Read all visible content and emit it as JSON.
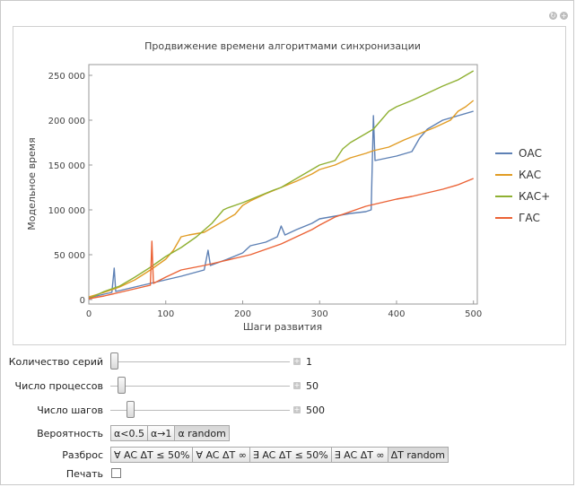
{
  "chart_data": {
    "type": "line",
    "title": "Продвижение времени алгоритмами синхронизации",
    "xlabel": "Шаги развития",
    "ylabel": "Модельное время",
    "xlim": [
      0,
      505
    ],
    "ylim": [
      -5000,
      262000
    ],
    "x_ticks": [
      0,
      100,
      200,
      300,
      400,
      500
    ],
    "x_tick_labels": [
      "0",
      "100",
      "200",
      "300",
      "400",
      "500"
    ],
    "y_ticks": [
      0,
      50000,
      100000,
      150000,
      200000,
      250000
    ],
    "y_tick_labels": [
      "0",
      "50 000",
      "100 000",
      "150 000",
      "200 000",
      "250 000"
    ],
    "legend_position": "right",
    "series": [
      {
        "name": "ОАС",
        "color": "#5e81b5",
        "points": [
          [
            0,
            2000
          ],
          [
            20,
            6000
          ],
          [
            30,
            8000
          ],
          [
            33,
            35000
          ],
          [
            35,
            9000
          ],
          [
            60,
            14000
          ],
          [
            80,
            18000
          ],
          [
            100,
            22000
          ],
          [
            120,
            26000
          ],
          [
            150,
            33000
          ],
          [
            155,
            55000
          ],
          [
            158,
            38000
          ],
          [
            180,
            45000
          ],
          [
            200,
            52000
          ],
          [
            210,
            60000
          ],
          [
            230,
            64000
          ],
          [
            245,
            70000
          ],
          [
            250,
            82000
          ],
          [
            255,
            72000
          ],
          [
            270,
            78000
          ],
          [
            290,
            85000
          ],
          [
            300,
            90000
          ],
          [
            320,
            93000
          ],
          [
            340,
            96000
          ],
          [
            360,
            98000
          ],
          [
            367,
            100000
          ],
          [
            370,
            205000
          ],
          [
            372,
            155000
          ],
          [
            400,
            160000
          ],
          [
            420,
            165000
          ],
          [
            430,
            180000
          ],
          [
            440,
            190000
          ],
          [
            460,
            200000
          ],
          [
            480,
            205000
          ],
          [
            500,
            210000
          ]
        ]
      },
      {
        "name": "КАС",
        "color": "#e19c24",
        "points": [
          [
            0,
            3000
          ],
          [
            20,
            8000
          ],
          [
            40,
            14000
          ],
          [
            60,
            22000
          ],
          [
            80,
            33000
          ],
          [
            100,
            45000
          ],
          [
            110,
            55000
          ],
          [
            120,
            70000
          ],
          [
            130,
            72000
          ],
          [
            150,
            75000
          ],
          [
            170,
            85000
          ],
          [
            190,
            95000
          ],
          [
            200,
            105000
          ],
          [
            210,
            110000
          ],
          [
            230,
            118000
          ],
          [
            250,
            125000
          ],
          [
            270,
            132000
          ],
          [
            290,
            140000
          ],
          [
            300,
            145000
          ],
          [
            320,
            150000
          ],
          [
            340,
            158000
          ],
          [
            360,
            163000
          ],
          [
            370,
            166000
          ],
          [
            390,
            170000
          ],
          [
            410,
            178000
          ],
          [
            430,
            185000
          ],
          [
            450,
            192000
          ],
          [
            470,
            200000
          ],
          [
            480,
            210000
          ],
          [
            490,
            215000
          ],
          [
            500,
            222000
          ]
        ]
      },
      {
        "name": "КАС+",
        "color": "#8fb032",
        "points": [
          [
            0,
            1000
          ],
          [
            20,
            9000
          ],
          [
            40,
            15000
          ],
          [
            60,
            25000
          ],
          [
            80,
            36000
          ],
          [
            100,
            48000
          ],
          [
            120,
            58000
          ],
          [
            140,
            70000
          ],
          [
            160,
            85000
          ],
          [
            170,
            95000
          ],
          [
            175,
            100000
          ],
          [
            180,
            102000
          ],
          [
            200,
            108000
          ],
          [
            220,
            115000
          ],
          [
            240,
            122000
          ],
          [
            250,
            125000
          ],
          [
            270,
            135000
          ],
          [
            290,
            145000
          ],
          [
            300,
            150000
          ],
          [
            320,
            155000
          ],
          [
            330,
            168000
          ],
          [
            340,
            175000
          ],
          [
            350,
            180000
          ],
          [
            360,
            185000
          ],
          [
            370,
            190000
          ],
          [
            380,
            200000
          ],
          [
            390,
            210000
          ],
          [
            400,
            215000
          ],
          [
            420,
            222000
          ],
          [
            440,
            230000
          ],
          [
            460,
            238000
          ],
          [
            480,
            245000
          ],
          [
            500,
            255000
          ]
        ]
      },
      {
        "name": "ГАС",
        "color": "#eb6235",
        "points": [
          [
            0,
            1000
          ],
          [
            20,
            4000
          ],
          [
            40,
            8000
          ],
          [
            60,
            12000
          ],
          [
            80,
            16000
          ],
          [
            82,
            65000
          ],
          [
            84,
            18000
          ],
          [
            100,
            25000
          ],
          [
            120,
            33000
          ],
          [
            150,
            38000
          ],
          [
            170,
            42000
          ],
          [
            190,
            46000
          ],
          [
            210,
            50000
          ],
          [
            230,
            56000
          ],
          [
            250,
            62000
          ],
          [
            270,
            70000
          ],
          [
            290,
            78000
          ],
          [
            300,
            83000
          ],
          [
            320,
            92000
          ],
          [
            340,
            98000
          ],
          [
            360,
            104000
          ],
          [
            380,
            108000
          ],
          [
            400,
            112000
          ],
          [
            420,
            115000
          ],
          [
            440,
            119000
          ],
          [
            460,
            123000
          ],
          [
            480,
            128000
          ],
          [
            500,
            135000
          ]
        ]
      }
    ]
  },
  "controls": {
    "series_count": {
      "label": "Количество серий",
      "value": "1",
      "fraction": 0.0
    },
    "process_count": {
      "label": "Число процессов",
      "value": "50",
      "fraction": 0.04
    },
    "step_count": {
      "label": "Число шагов",
      "value": "500",
      "fraction": 0.09
    },
    "probability": {
      "label": "Вероятность",
      "options": [
        "α<0.5",
        "α→1",
        "α random"
      ],
      "selected": 2
    },
    "spread": {
      "label": "Разброс",
      "options": [
        "∀ AC ΔT ≤ 50%",
        "∀ AC ΔT ∞",
        "∃ AC ΔT ≤ 50%",
        "∃ AC ΔT ∞",
        "ΔT random"
      ],
      "selected": 4
    },
    "print": {
      "label": "Печать"
    }
  }
}
